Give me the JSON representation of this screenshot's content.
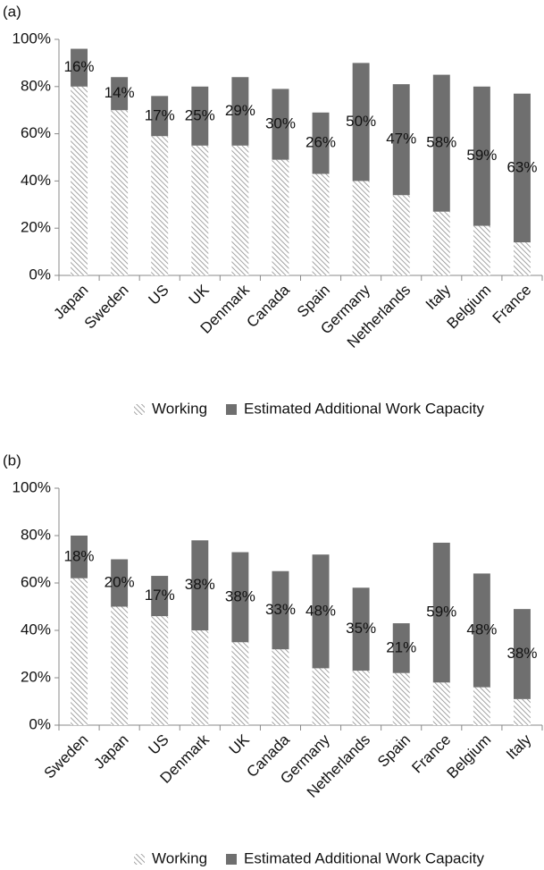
{
  "chart_data": [
    {
      "type": "stacked_bar",
      "panel_label": "(a)",
      "categories": [
        "Japan",
        "Sweden",
        "US",
        "UK",
        "Denmark",
        "Canada",
        "Spain",
        "Germany",
        "Netherlands",
        "Italy",
        "Belgium",
        "France"
      ],
      "series": [
        {
          "name": "Working",
          "color": "#8c8c8c",
          "pattern": "hatch",
          "values": [
            80,
            70,
            59,
            55,
            55,
            49,
            43,
            40,
            34,
            27,
            21,
            14
          ]
        },
        {
          "name": "Estimated Additional Work Capacity",
          "color": "#6f6f6f",
          "values": [
            16,
            14,
            17,
            25,
            29,
            30,
            26,
            50,
            47,
            58,
            59,
            63
          ],
          "value_labels": [
            "16%",
            "14%",
            "17%",
            "25%",
            "29%",
            "30%",
            "26%",
            "50%",
            "47%",
            "58%",
            "59%",
            "63%"
          ]
        }
      ],
      "ylim": [
        0,
        100
      ],
      "yticks": [
        {
          "value": 0,
          "label": "0%"
        },
        {
          "value": 20,
          "label": "20%"
        },
        {
          "value": 40,
          "label": "40%"
        },
        {
          "value": 60,
          "label": "60%"
        },
        {
          "value": 80,
          "label": "80%"
        },
        {
          "value": 100,
          "label": "100%"
        }
      ]
    },
    {
      "type": "stacked_bar",
      "panel_label": "(b)",
      "categories": [
        "Sweden",
        "Japan",
        "US",
        "Denmark",
        "UK",
        "Canada",
        "Germany",
        "Netherlands",
        "Spain",
        "France",
        "Belgium",
        "Italy"
      ],
      "series": [
        {
          "name": "Working",
          "color": "#8c8c8c",
          "pattern": "hatch",
          "values": [
            62,
            50,
            46,
            40,
            35,
            32,
            24,
            23,
            22,
            18,
            16,
            11
          ]
        },
        {
          "name": "Estimated Additional Work Capacity",
          "color": "#6f6f6f",
          "values": [
            18,
            20,
            17,
            38,
            38,
            33,
            48,
            35,
            21,
            59,
            48,
            38
          ],
          "value_labels": [
            "18%",
            "20%",
            "17%",
            "38%",
            "38%",
            "33%",
            "48%",
            "35%",
            "21%",
            "59%",
            "48%",
            "38%"
          ]
        }
      ],
      "ylim": [
        0,
        100
      ],
      "yticks": [
        {
          "value": 0,
          "label": "0%"
        },
        {
          "value": 20,
          "label": "20%"
        },
        {
          "value": 40,
          "label": "40%"
        },
        {
          "value": 60,
          "label": "60%"
        },
        {
          "value": 80,
          "label": "80%"
        },
        {
          "value": 100,
          "label": "100%"
        }
      ]
    }
  ]
}
